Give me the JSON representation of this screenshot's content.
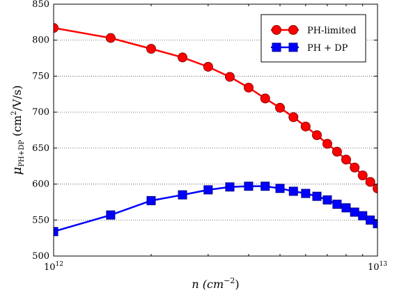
{
  "chart_data": {
    "type": "line",
    "x_scale": "log",
    "xlim": [
      1000000000000.0,
      10000000000000.0
    ],
    "ylim": [
      500,
      850
    ],
    "grid": "horizontal-dotted",
    "legend_position": "top-right",
    "xlabel_text": "n (cm",
    "xlabel_exp": "−2",
    "xlabel_close": ")",
    "ylabel": {
      "symbol": "μ",
      "sub": "PH+DP",
      "open": " (cm",
      "sup": "2",
      "close": "/V/s)"
    },
    "x_ticks": [
      {
        "value": 1000000000000.0,
        "base": "10",
        "exp": "12"
      },
      {
        "value": 10000000000000.0,
        "base": "10",
        "exp": "13"
      }
    ],
    "y_ticks": [
      500,
      550,
      600,
      650,
      700,
      750,
      800,
      850
    ],
    "series": [
      {
        "name": "PH-limited",
        "color": "#ff0000",
        "edge_color": "#8b0000",
        "marker": "circle",
        "x": [
          1000000000000.0,
          1500000000000.0,
          2000000000000.0,
          2500000000000.0,
          3000000000000.0,
          3500000000000.0,
          4000000000000.0,
          4500000000000.0,
          5000000000000.0,
          5500000000000.0,
          6000000000000.0,
          6500000000000.0,
          7000000000000.0,
          7500000000000.0,
          8000000000000.0,
          8500000000000.0,
          9000000000000.0,
          9500000000000.0,
          10000000000000.0
        ],
        "y": [
          817,
          803,
          788,
          776,
          763,
          749,
          734,
          719,
          706,
          693,
          680,
          668,
          656,
          645,
          634,
          623,
          612,
          603,
          594
        ]
      },
      {
        "name": "PH + DP",
        "color": "#0000ff",
        "edge_color": "#00008b",
        "marker": "square",
        "x": [
          1000000000000.0,
          1500000000000.0,
          2000000000000.0,
          2500000000000.0,
          3000000000000.0,
          3500000000000.0,
          4000000000000.0,
          4500000000000.0,
          5000000000000.0,
          5500000000000.0,
          6000000000000.0,
          6500000000000.0,
          7000000000000.0,
          7500000000000.0,
          8000000000000.0,
          8500000000000.0,
          9000000000000.0,
          9500000000000.0,
          10000000000000.0
        ],
        "y": [
          534,
          557,
          577,
          585,
          592,
          596,
          597,
          597,
          594,
          590,
          587,
          583,
          578,
          572,
          567,
          561,
          556,
          550,
          545
        ]
      }
    ]
  }
}
